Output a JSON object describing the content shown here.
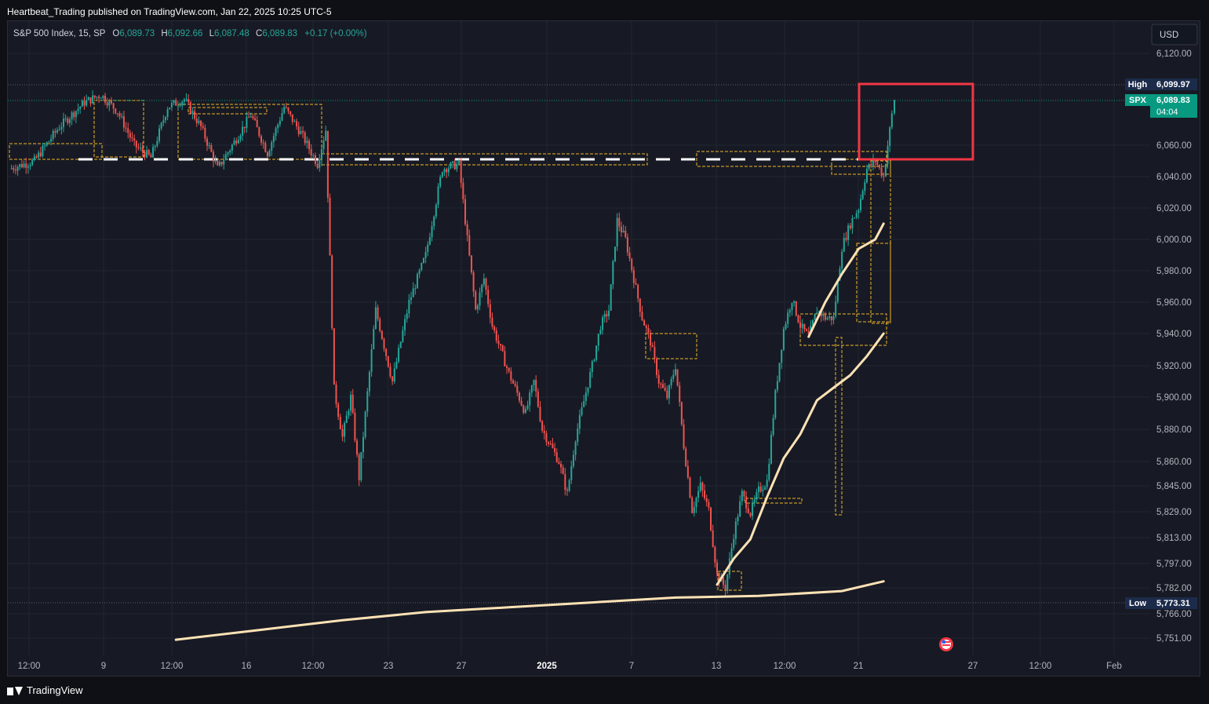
{
  "header": {
    "publish_line": "Heartbeat_Trading published on TradingView.com, Jan 22, 2025 10:25 UTC-5"
  },
  "legend": {
    "symbol": "S&P 500 Index, 15, SP",
    "o_label": "O",
    "o_value": "6,089.73",
    "h_label": "H",
    "h_value": "6,092.66",
    "l_label": "L",
    "l_value": "6,087.48",
    "c_label": "C",
    "c_value": "6,089.83",
    "change": "+0.17 (+0.00%)"
  },
  "currency_button": "USD",
  "footer": {
    "brand": "TradingView"
  },
  "colors": {
    "up": "#26a69a",
    "down": "#ef5350",
    "box": "#f0b429",
    "vwap": "#ffe2b5",
    "highlight": "#f23645",
    "price_tag": "#089981",
    "range_tag": "#1c2b4a"
  },
  "chart_data": {
    "type": "candlestick",
    "title": "",
    "y_axis": {
      "ticks": [
        6120,
        6060,
        6040,
        6020,
        6000,
        5980,
        5960,
        5940,
        5920,
        5900,
        5880,
        5860,
        5845,
        5829,
        5813,
        5797,
        5782,
        5766,
        5751
      ],
      "tick_labels": [
        "6,120.00",
        "6,060.00",
        "6,040.00",
        "6,020.00",
        "6,000.00",
        "5,980.00",
        "5,960.00",
        "5,940.00",
        "5,920.00",
        "5,900.00",
        "5,880.00",
        "5,860.00",
        "5,845.00",
        "5,829.00",
        "5,813.00",
        "5,797.00",
        "5,782.00",
        "5,766.00",
        "5,751.00"
      ],
      "scale": "nonlinear"
    },
    "x_axis": {
      "tick_labels": [
        "12:00",
        "9",
        "12:00",
        "16",
        "12:00",
        "23",
        "27",
        "2025",
        "7",
        "13",
        "12:00",
        "21",
        "27",
        "12:00",
        "Feb"
      ]
    },
    "price_tags": [
      {
        "label": "High",
        "value": "6,099.97"
      },
      {
        "label": "SPX",
        "value": "6,089.83",
        "countdown": "04:04"
      },
      {
        "label": "Low",
        "value": "5,773.31"
      }
    ],
    "reference_level": 6051,
    "close_path": [
      [
        0,
        6045
      ],
      [
        3,
        6050
      ],
      [
        6,
        6072
      ],
      [
        9,
        6088
      ],
      [
        11,
        6093
      ],
      [
        13,
        6082
      ],
      [
        15,
        6060
      ],
      [
        17,
        6052
      ],
      [
        19,
        6085
      ],
      [
        21,
        6090
      ],
      [
        23,
        6072
      ],
      [
        25,
        6045
      ],
      [
        27,
        6062
      ],
      [
        29,
        6080
      ],
      [
        31,
        6055
      ],
      [
        33,
        6085
      ],
      [
        35,
        6068
      ],
      [
        37,
        6048
      ],
      [
        38,
        6070
      ],
      [
        39,
        5905
      ],
      [
        40,
        5875
      ],
      [
        41,
        5900
      ],
      [
        42,
        5850
      ],
      [
        44,
        5955
      ],
      [
        46,
        5910
      ],
      [
        48,
        5960
      ],
      [
        50,
        5990
      ],
      [
        52,
        6045
      ],
      [
        54,
        6048
      ],
      [
        55,
        6000
      ],
      [
        56,
        5955
      ],
      [
        57,
        5975
      ],
      [
        58,
        5945
      ],
      [
        60,
        5915
      ],
      [
        62,
        5890
      ],
      [
        63,
        5910
      ],
      [
        64,
        5880
      ],
      [
        66,
        5860
      ],
      [
        67,
        5840
      ],
      [
        68,
        5875
      ],
      [
        70,
        5920
      ],
      [
        71,
        5945
      ],
      [
        72,
        5955
      ],
      [
        73,
        6012
      ],
      [
        74,
        6000
      ],
      [
        75,
        5975
      ],
      [
        76,
        5950
      ],
      [
        77,
        5935
      ],
      [
        78,
        5910
      ],
      [
        79,
        5900
      ],
      [
        80,
        5920
      ],
      [
        81,
        5870
      ],
      [
        82,
        5830
      ],
      [
        83,
        5845
      ],
      [
        84,
        5830
      ],
      [
        85,
        5790
      ],
      [
        86,
        5782
      ],
      [
        87,
        5815
      ],
      [
        88,
        5840
      ],
      [
        89,
        5828
      ],
      [
        90,
        5842
      ],
      [
        91,
        5848
      ],
      [
        92,
        5902
      ],
      [
        93,
        5943
      ],
      [
        94,
        5962
      ],
      [
        95,
        5945
      ],
      [
        96,
        5938
      ],
      [
        97,
        5955
      ],
      [
        98,
        5950
      ],
      [
        99,
        5950
      ],
      [
        100,
        5995
      ],
      [
        101,
        6010
      ],
      [
        102,
        6020
      ],
      [
        103,
        6045
      ],
      [
        104,
        6050
      ],
      [
        105,
        6040
      ],
      [
        106,
        6080
      ],
      [
        106.3,
        6089.83
      ]
    ],
    "vwap_upper": [
      [
        96,
        5938
      ],
      [
        98,
        5960
      ],
      [
        100,
        5978
      ],
      [
        102,
        5994
      ],
      [
        104,
        6000
      ],
      [
        105,
        6010
      ]
    ],
    "vwap_mid": [
      [
        85,
        5784
      ],
      [
        87,
        5800
      ],
      [
        89,
        5812
      ],
      [
        91,
        5838
      ],
      [
        93,
        5862
      ],
      [
        95,
        5877
      ],
      [
        97,
        5898
      ],
      [
        99,
        5906
      ],
      [
        101,
        5914
      ],
      [
        103,
        5926
      ],
      [
        105,
        5940
      ]
    ],
    "vwap_anchor": [
      [
        20,
        5750
      ],
      [
        30,
        5756
      ],
      [
        40,
        5762
      ],
      [
        50,
        5767
      ],
      [
        60,
        5770
      ],
      [
        70,
        5773
      ],
      [
        80,
        5776
      ],
      [
        90,
        5777
      ],
      [
        100,
        5780
      ],
      [
        105,
        5786
      ]
    ]
  }
}
